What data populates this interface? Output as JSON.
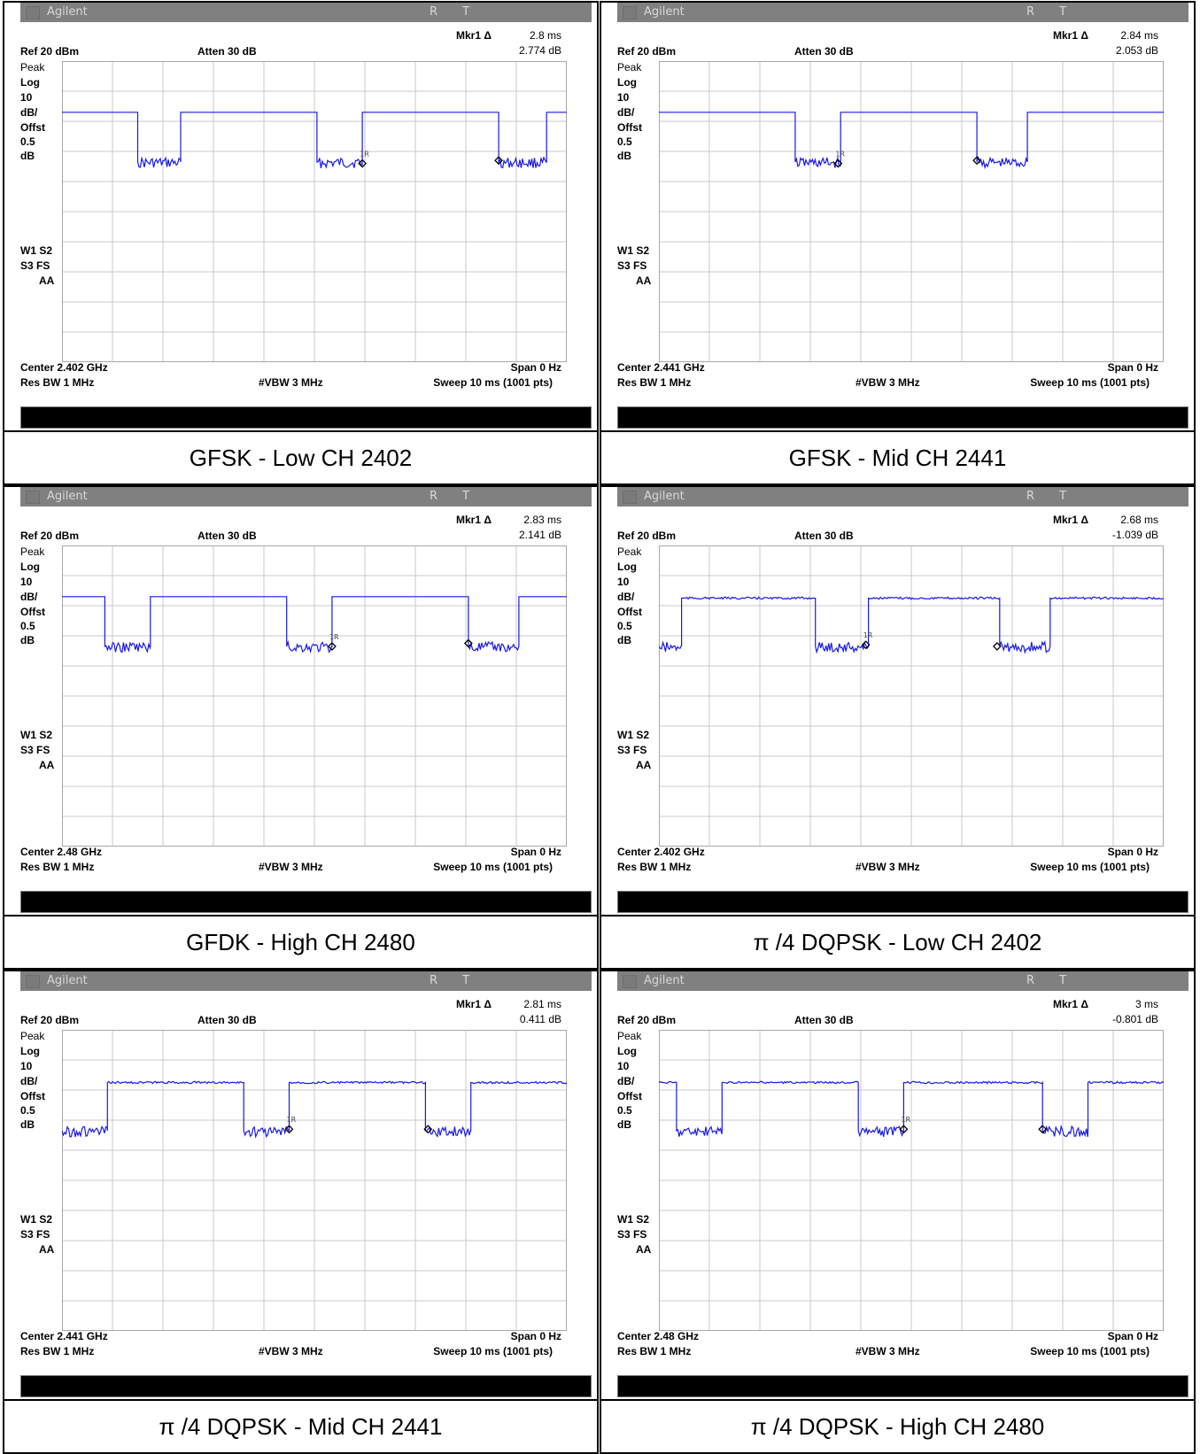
{
  "colors": {
    "trace": "#1a1ae6",
    "titlebar": "#808080",
    "grid": "#c8c8c8"
  },
  "instrument": {
    "brand": "Agilent",
    "status": "R  T",
    "mkr_label": "Mkr1 Δ",
    "ref": "Ref 20 dBm",
    "atten": "Atten 30 dB",
    "left_labels": [
      "Peak",
      "Log",
      "10",
      "dB/",
      "Offst",
      "0.5",
      "dB"
    ],
    "flags1": "W1  S2",
    "flags2": "S3  FS",
    "flags3": "AA",
    "span": "Span 0 Hz",
    "rbw": "Res BW 1 MHz",
    "vbw": "#VBW 3 MHz",
    "sweep": "Sweep 10 ms (1001 pts)",
    "marker_tag": "1R"
  },
  "panels": [
    {
      "caption": "GFSK - Low CH 2402",
      "center": "Center 2.402 GHz",
      "mkr_time": "2.8 ms",
      "mkr_db": "2.774 dB"
    },
    {
      "caption": "GFSK - Mid CH 2441",
      "center": "Center 2.441 GHz",
      "mkr_time": "2.84 ms",
      "mkr_db": "2.053 dB"
    },
    {
      "caption": "GFDK - High CH 2480",
      "center": "Center 2.48 GHz",
      "mkr_time": "2.83 ms",
      "mkr_db": "2.141 dB"
    },
    {
      "caption": "π /4 DQPSK - Low CH 2402",
      "center": "Center 2.402 GHz",
      "mkr_time": "2.68 ms",
      "mkr_db": "-1.039 dB"
    },
    {
      "caption": "π /4 DQPSK - Mid CH 2441",
      "center": "Center 2.441 GHz",
      "mkr_time": "2.81 ms",
      "mkr_db": "0.411 dB"
    },
    {
      "caption": "π /4 DQPSK - High CH 2480",
      "center": "Center 2.48 GHz",
      "mkr_time": "3 ms",
      "mkr_db": "-0.801 dB"
    }
  ],
  "chart_data": [
    {
      "type": "line",
      "xlim": [
        0,
        10
      ],
      "grid": true,
      "series": [
        {
          "x": [
            0.0,
            1.5,
            1.5,
            2.35,
            2.35,
            5.05,
            5.05,
            5.95,
            5.95,
            8.65,
            8.65,
            9.6,
            9.6,
            10.0
          ],
          "y": [
            3,
            3,
            -13.5,
            -13.5,
            3,
            3,
            -13.5,
            -13.5,
            3,
            3,
            -13.5,
            -13.5,
            3,
            3
          ]
        }
      ],
      "markers": [
        {
          "x": 5.95,
          "y": -14,
          "tag": "1R"
        },
        {
          "x": 8.65,
          "y": -13,
          "tag": ""
        }
      ]
    },
    {
      "type": "line",
      "xlim": [
        0,
        10
      ],
      "grid": true,
      "series": [
        {
          "x": [
            0.0,
            2.7,
            2.7,
            3.6,
            3.6,
            6.3,
            6.3,
            7.3,
            7.3,
            10.0
          ],
          "y": [
            3,
            3,
            -13.5,
            -13.5,
            3,
            3,
            -13.5,
            -13.5,
            3,
            3
          ]
        }
      ],
      "markers": [
        {
          "x": 3.55,
          "y": -14,
          "tag": "1R"
        },
        {
          "x": 6.3,
          "y": -13,
          "tag": ""
        }
      ]
    },
    {
      "type": "line",
      "xlim": [
        0,
        10
      ],
      "grid": true,
      "series": [
        {
          "x": [
            0.0,
            0.85,
            0.85,
            1.75,
            1.75,
            4.45,
            4.45,
            5.35,
            5.35,
            8.05,
            8.05,
            9.05,
            9.05,
            10.0
          ],
          "y": [
            3,
            3,
            -13.5,
            -13.5,
            3,
            3,
            -13.5,
            -13.5,
            3,
            3,
            -13.5,
            -13.5,
            3,
            3
          ]
        }
      ],
      "markers": [
        {
          "x": 5.35,
          "y": -13.5,
          "tag": "1R"
        },
        {
          "x": 8.05,
          "y": -12.5,
          "tag": ""
        }
      ]
    },
    {
      "type": "line",
      "xlim": [
        0,
        10
      ],
      "grid": true,
      "series": [
        {
          "x": [
            0.0,
            0.45,
            0.45,
            3.1,
            3.1,
            4.15,
            4.15,
            6.75,
            6.75,
            7.75,
            7.75,
            10.0
          ],
          "y": [
            -13.5,
            -13.5,
            2.5,
            2.5,
            -13.5,
            -13.5,
            2.5,
            2.5,
            -13.5,
            -13.5,
            2.5,
            2.5
          ]
        }
      ],
      "markers": [
        {
          "x": 4.1,
          "y": -13,
          "tag": "1R"
        },
        {
          "x": 6.7,
          "y": -13.5,
          "tag": ""
        }
      ]
    },
    {
      "type": "line",
      "xlim": [
        0,
        10
      ],
      "grid": true,
      "series": [
        {
          "x": [
            0.0,
            0.9,
            0.9,
            3.6,
            3.6,
            4.5,
            4.5,
            7.2,
            7.2,
            8.1,
            8.1,
            10.0
          ],
          "y": [
            -13.5,
            -13.5,
            2.5,
            2.5,
            -13.5,
            -13.5,
            2.5,
            2.5,
            -13.5,
            -13.5,
            2.5,
            2.5
          ]
        }
      ],
      "markers": [
        {
          "x": 4.5,
          "y": -13,
          "tag": "1R"
        },
        {
          "x": 7.25,
          "y": -13,
          "tag": ""
        }
      ]
    },
    {
      "type": "line",
      "xlim": [
        0,
        10
      ],
      "grid": true,
      "series": [
        {
          "x": [
            0.0,
            0.35,
            0.35,
            1.25,
            1.25,
            3.95,
            3.95,
            4.85,
            4.85,
            7.6,
            7.6,
            8.5,
            8.5,
            10.0
          ],
          "y": [
            2.5,
            2.5,
            -13.5,
            -13.5,
            2.5,
            2.5,
            -13.5,
            -13.5,
            2.5,
            2.5,
            -13.5,
            -13.5,
            2.5,
            2.5
          ]
        }
      ],
      "markers": [
        {
          "x": 4.85,
          "y": -13,
          "tag": "1R"
        },
        {
          "x": 7.6,
          "y": -13,
          "tag": ""
        }
      ]
    }
  ]
}
